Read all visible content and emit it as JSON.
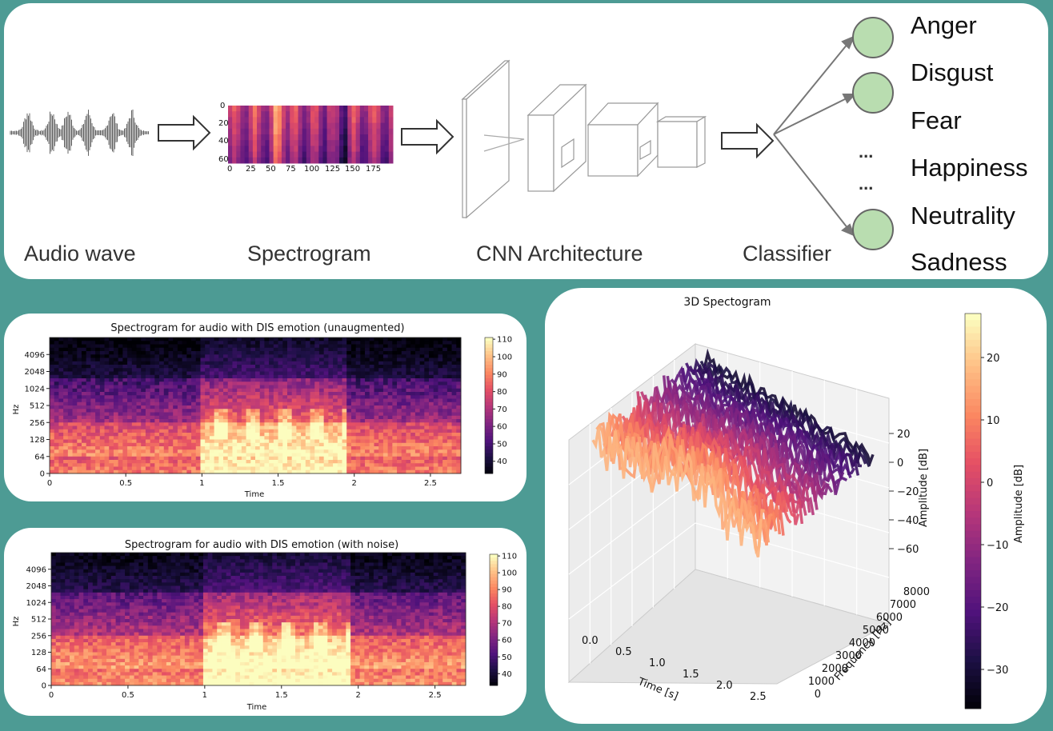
{
  "pipeline": {
    "stages": [
      "Audio wave",
      "Spectrogram",
      "CNN Architecture",
      "Classifier"
    ],
    "emotions": [
      "Anger",
      "Disgust",
      "Fear",
      "Happiness",
      "Neutrality",
      "Sadness"
    ],
    "ellipsis": "...",
    "mini_spectrogram": {
      "y_ticks": [
        "0",
        "20",
        "40",
        "60"
      ],
      "x_ticks": [
        "0",
        "25",
        "50",
        "75",
        "100",
        "125",
        "150",
        "175"
      ]
    }
  },
  "spectrogram_unaugmented": {
    "title": "Spectrogram for audio with DIS emotion (unaugmented)",
    "xlabel": "Time",
    "ylabel": "Hz",
    "y_ticks": [
      "0",
      "64",
      "128",
      "256",
      "512",
      "1024",
      "2048",
      "4096"
    ],
    "x_ticks": [
      "0",
      "0.5",
      "1",
      "1.5",
      "2",
      "2.5"
    ],
    "colorbar_ticks": [
      "40",
      "50",
      "60",
      "70",
      "80",
      "90",
      "100",
      "110"
    ]
  },
  "spectrogram_noise": {
    "title": "Spectrogram for audio with DIS emotion (with noise)",
    "xlabel": "Time",
    "ylabel": "Hz",
    "y_ticks": [
      "0",
      "64",
      "128",
      "256",
      "512",
      "1024",
      "2048",
      "4096"
    ],
    "x_ticks": [
      "0",
      "0.5",
      "1",
      "1.5",
      "2",
      "2.5"
    ],
    "colorbar_ticks": [
      "40",
      "50",
      "60",
      "70",
      "80",
      "90",
      "100",
      "110"
    ]
  },
  "spectrogram_3d": {
    "title": "3D Spectogram",
    "xlabel": "Time [s]",
    "ylabel": "Frequency [Hz]",
    "zlabel": "Amplitude [dB]",
    "time_ticks": [
      "0.0",
      "0.5",
      "1.0",
      "1.5",
      "2.0",
      "2.5"
    ],
    "freq_ticks": [
      "0",
      "1000",
      "2000",
      "3000",
      "4000",
      "5000",
      "6000",
      "7000",
      "8000"
    ],
    "amp_ticks": [
      "20",
      "0",
      "−20",
      "−40",
      "−60"
    ],
    "colorbar_label": "Amplitude [dB]",
    "colorbar_ticks": [
      "20",
      "10",
      "0",
      "−10",
      "−20",
      "−30"
    ]
  },
  "colors": {
    "background": "#4d9b94",
    "node_fill": "#b9ddb0",
    "magma_low": "#0b0724",
    "magma_mid": "#b5367a",
    "magma_high": "#fcf7b8"
  }
}
